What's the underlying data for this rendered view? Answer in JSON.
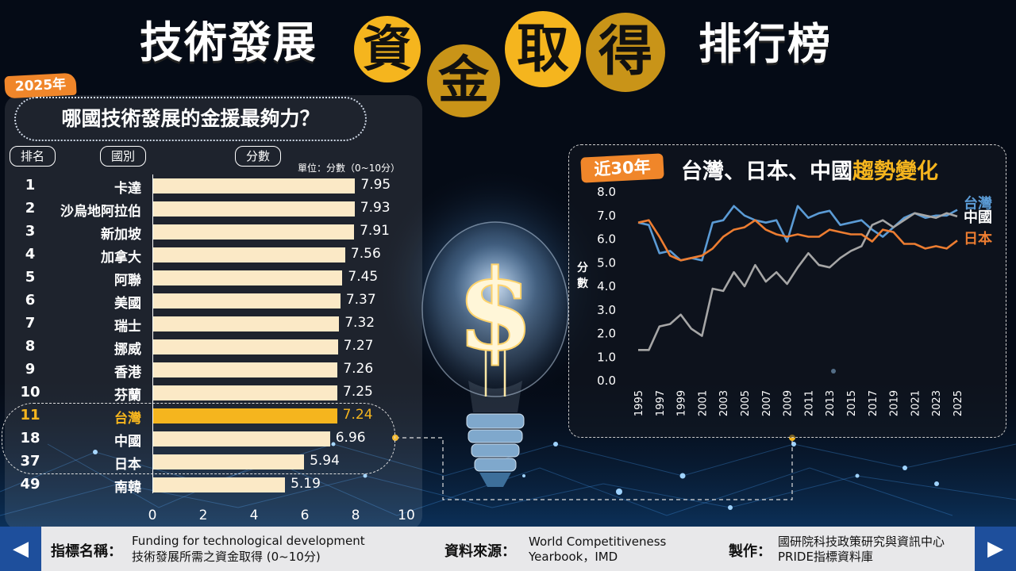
{
  "title": {
    "left": "技術發展",
    "c1": "資",
    "c2": "金",
    "c3": "取",
    "c4": "得",
    "right": "排行榜"
  },
  "year_badge": "2025年",
  "question": "哪國技術發展的金援最夠力？",
  "headers": {
    "rank": "排名",
    "country": "國別",
    "score": "分數"
  },
  "unit_note": "單位：分數（0~10分）",
  "colors": {
    "accent": "#f5b51e",
    "orange": "#f0862a",
    "bar": "#fbe9c6",
    "taiwan_line": "#5b9bd5",
    "china_line": "#a6a6a6",
    "japan_line": "#ed7d31"
  },
  "chart_data": [
    {
      "type": "bar",
      "orientation": "horizontal",
      "ranks": [
        "1",
        "2",
        "3",
        "4",
        "5",
        "6",
        "7",
        "8",
        "9",
        "10",
        "11",
        "18",
        "37",
        "49"
      ],
      "categories": [
        "卡達",
        "沙烏地阿拉伯",
        "新加坡",
        "加拿大",
        "阿聯",
        "美國",
        "瑞士",
        "挪威",
        "香港",
        "芬蘭",
        "台灣",
        "中國",
        "日本",
        "南韓"
      ],
      "values": [
        7.95,
        7.93,
        7.91,
        7.56,
        7.45,
        7.37,
        7.32,
        7.27,
        7.26,
        7.25,
        7.24,
        6.96,
        5.94,
        5.19
      ],
      "value_labels": [
        "7.95",
        "7.93",
        "7.91",
        "7.56",
        "7.45",
        "7.37",
        "7.32",
        "7.27",
        "7.26",
        "7.25",
        "7.24",
        "6.96",
        "5.94",
        "5.19"
      ],
      "highlight": "台灣",
      "xlim": [
        0,
        10
      ],
      "xticks": [
        "0",
        "2",
        "4",
        "6",
        "8",
        "10"
      ]
    },
    {
      "type": "line",
      "badge": "近30年",
      "title_main": "台灣、日本、中國",
      "title_accent": "趨勢變化",
      "ylabel": "分數",
      "ylim": [
        0,
        8
      ],
      "yticks": [
        "8.0",
        "7.0",
        "6.0",
        "5.0",
        "4.0",
        "3.0",
        "2.0",
        "1.0",
        "0.0"
      ],
      "xticks": [
        "1995",
        "1997",
        "1999",
        "2001",
        "2003",
        "2005",
        "2007",
        "2009",
        "2011",
        "2013",
        "2015",
        "2017",
        "2019",
        "2021",
        "2023",
        "2025"
      ],
      "x": [
        1995,
        1996,
        1997,
        1998,
        1999,
        2000,
        2001,
        2002,
        2003,
        2004,
        2005,
        2006,
        2007,
        2008,
        2009,
        2010,
        2011,
        2012,
        2013,
        2014,
        2015,
        2016,
        2017,
        2018,
        2019,
        2020,
        2021,
        2022,
        2023,
        2024,
        2025
      ],
      "series": [
        {
          "name": "台灣",
          "color": "#5b9bd5",
          "values": [
            6.7,
            6.6,
            5.4,
            5.5,
            5.1,
            5.2,
            5.1,
            6.7,
            6.8,
            7.4,
            7.0,
            6.8,
            6.7,
            6.8,
            5.9,
            7.4,
            6.9,
            7.1,
            7.2,
            6.6,
            6.7,
            6.8,
            6.4,
            6.1,
            6.5,
            6.9,
            7.1,
            6.9,
            7.0,
            7.0,
            7.24
          ]
        },
        {
          "name": "中國",
          "color": "#a6a6a6",
          "values": [
            1.3,
            1.3,
            2.3,
            2.4,
            2.8,
            2.2,
            1.9,
            3.9,
            3.8,
            4.6,
            4.0,
            4.9,
            4.2,
            4.6,
            4.1,
            4.8,
            5.4,
            4.9,
            4.8,
            5.2,
            5.5,
            5.7,
            6.6,
            6.8,
            6.5,
            6.8,
            7.1,
            7.0,
            6.9,
            7.1,
            6.96
          ]
        },
        {
          "name": "日本",
          "color": "#ed7d31",
          "values": [
            6.7,
            6.8,
            6.1,
            5.3,
            5.1,
            5.2,
            5.3,
            5.6,
            6.1,
            6.4,
            6.5,
            6.8,
            6.4,
            6.2,
            6.1,
            6.2,
            6.1,
            6.1,
            6.4,
            6.3,
            6.2,
            6.2,
            5.9,
            6.4,
            6.3,
            5.8,
            5.8,
            5.6,
            5.7,
            5.6,
            5.94
          ]
        }
      ]
    }
  ],
  "footer": {
    "indicator_label": "指標名稱：",
    "indicator_en": "Funding for technological development",
    "indicator_zh": "技術發展所需之資金取得 (0~10分)",
    "source_label": "資料來源：",
    "source_line1": "World Competitiveness",
    "source_line2": "Yearbook，IMD",
    "maker_label": "製作：",
    "maker_line1": "國研院科技政策研究與資訊中心",
    "maker_line2": "PRIDE指標資料庫"
  },
  "nav": {
    "prev_icon": "◀",
    "next_icon": "▶"
  }
}
